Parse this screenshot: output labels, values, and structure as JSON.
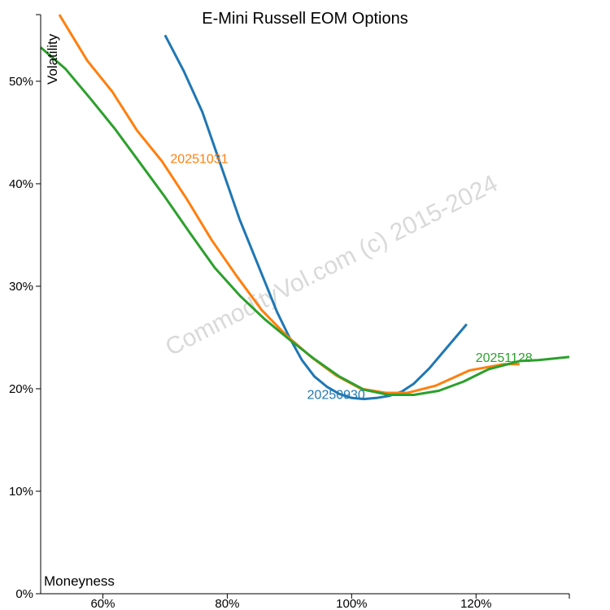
{
  "chart_data": {
    "type": "line",
    "title": "E-Mini Russell EOM Options",
    "xlabel": "Moneyness",
    "ylabel": "Volatility",
    "watermark": "CommodityVol.com (c) 2015-2024",
    "xlim": [
      0.5,
      1.35
    ],
    "ylim": [
      0,
      0.565
    ],
    "x_ticks": [
      {
        "value": 0.6,
        "label": "60%"
      },
      {
        "value": 0.8,
        "label": "80%"
      },
      {
        "value": 1.0,
        "label": "100%"
      },
      {
        "value": 1.2,
        "label": "120%"
      }
    ],
    "y_ticks": [
      {
        "value": 0.0,
        "label": "0%"
      },
      {
        "value": 0.1,
        "label": "10%"
      },
      {
        "value": 0.2,
        "label": "20%"
      },
      {
        "value": 0.3,
        "label": "30%"
      },
      {
        "value": 0.4,
        "label": "40%"
      },
      {
        "value": 0.5,
        "label": "50%"
      }
    ],
    "grid": false,
    "series": [
      {
        "name": "20250930",
        "color": "#1f77b4",
        "x": [
          0.7,
          0.73,
          0.76,
          0.78,
          0.8,
          0.82,
          0.84,
          0.86,
          0.88,
          0.9,
          0.92,
          0.94,
          0.96,
          0.98,
          1.0,
          1.02,
          1.04,
          1.06,
          1.08,
          1.1,
          1.125,
          1.15,
          1.185
        ],
        "y": [
          0.545,
          0.51,
          0.47,
          0.435,
          0.4,
          0.365,
          0.335,
          0.305,
          0.275,
          0.25,
          0.228,
          0.212,
          0.202,
          0.195,
          0.191,
          0.19,
          0.191,
          0.193,
          0.197,
          0.205,
          0.22,
          0.238,
          0.263
        ],
        "label_at": [
          0.975,
          0.19
        ]
      },
      {
        "name": "20251031",
        "color": "#ff7f0e",
        "x": [
          0.53,
          0.575,
          0.615,
          0.655,
          0.695,
          0.735,
          0.775,
          0.815,
          0.855,
          0.895,
          0.935,
          0.975,
          1.015,
          1.055,
          1.09,
          1.135,
          1.19,
          1.245,
          1.27
        ],
        "y": [
          0.565,
          0.52,
          0.49,
          0.452,
          0.422,
          0.385,
          0.345,
          0.31,
          0.277,
          0.252,
          0.231,
          0.213,
          0.2,
          0.196,
          0.196,
          0.203,
          0.218,
          0.224,
          0.224
        ],
        "label_at": [
          0.755,
          0.42
        ]
      },
      {
        "name": "20251128",
        "color": "#2ca02c",
        "x": [
          0.5,
          0.54,
          0.58,
          0.62,
          0.66,
          0.7,
          0.74,
          0.78,
          0.82,
          0.86,
          0.9,
          0.94,
          0.98,
          1.02,
          1.06,
          1.1,
          1.14,
          1.18,
          1.22,
          1.27,
          1.3,
          1.35
        ],
        "y": [
          0.533,
          0.512,
          0.483,
          0.453,
          0.42,
          0.387,
          0.352,
          0.318,
          0.291,
          0.268,
          0.248,
          0.229,
          0.212,
          0.199,
          0.194,
          0.194,
          0.198,
          0.207,
          0.219,
          0.227,
          0.228,
          0.231
        ],
        "label_at": [
          1.245,
          0.226
        ]
      }
    ]
  }
}
